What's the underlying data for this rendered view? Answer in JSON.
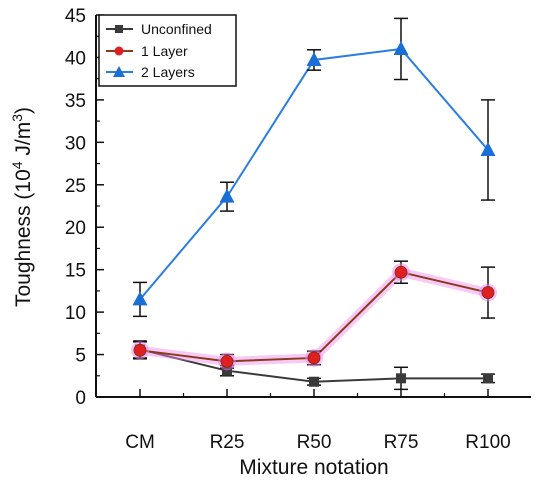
{
  "chart_data": {
    "type": "line",
    "title": "",
    "xlabel": "Mixture notation",
    "ylabel_main": "Toughness (10",
    "ylabel_sup1": "4",
    "ylabel_mid": " J/m",
    "ylabel_sup2": "3",
    "ylabel_end": ")",
    "categories": [
      "CM",
      "R25",
      "R50",
      "R75",
      "R100"
    ],
    "ylim": [
      0,
      45
    ],
    "yticks": [
      0,
      5,
      10,
      15,
      20,
      25,
      30,
      35,
      40,
      45
    ],
    "legend_position": "top-left",
    "grid": false,
    "series": [
      {
        "name": "Unconfined",
        "marker": "square",
        "color": "#3a3a3a",
        "values": [
          5.6,
          3.1,
          1.8,
          2.2,
          2.2
        ],
        "errors": [
          1.0,
          0.6,
          0.4,
          1.3,
          0.5
        ]
      },
      {
        "name": "1 Layer",
        "marker": "circle",
        "color": "#e02020",
        "line_color": "#8b3a1a",
        "glow": "#ee88ee",
        "values": [
          5.5,
          4.2,
          4.6,
          14.7,
          12.3
        ],
        "errors": [
          1.0,
          0.8,
          0.8,
          1.3,
          3.0
        ]
      },
      {
        "name": "2 Layers",
        "marker": "triangle",
        "color": "#1a6fd6",
        "line_color": "#2a7de1",
        "values": [
          11.5,
          23.6,
          39.7,
          41.0,
          29.1
        ],
        "errors": [
          2.0,
          1.7,
          1.2,
          3.6,
          5.9
        ]
      }
    ]
  }
}
